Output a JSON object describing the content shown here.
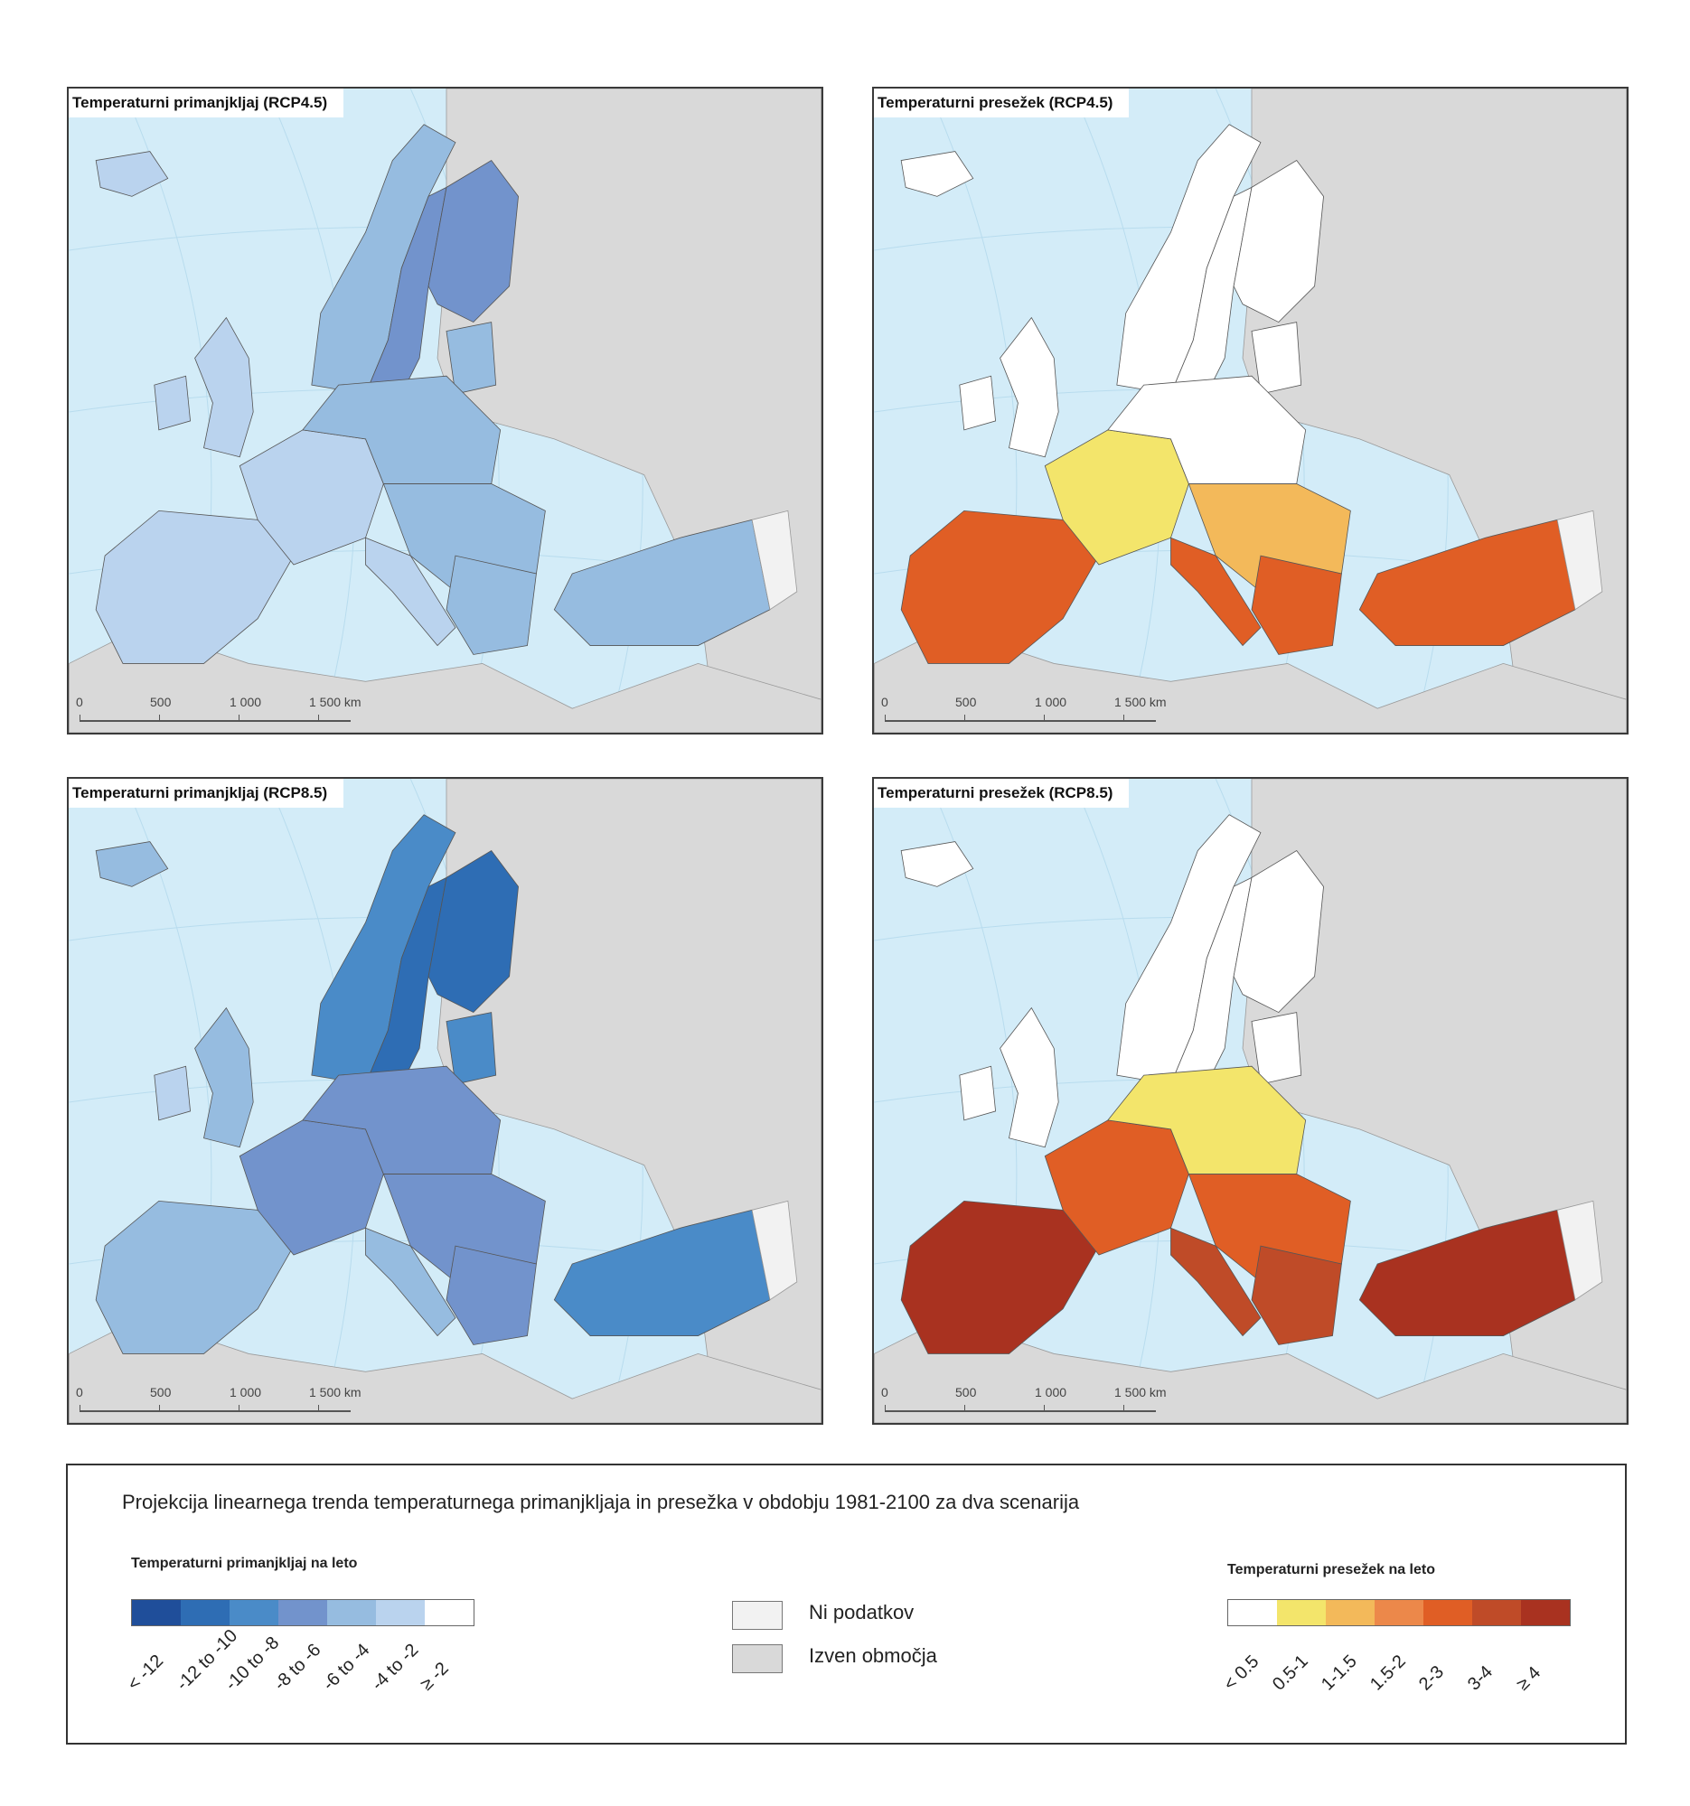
{
  "maps": [
    {
      "title": "Temperaturni primanjkljaj (RCP4.5)",
      "kind": "deficit",
      "scenario": "RCP4.5"
    },
    {
      "title": "Temperaturni presežek (RCP4.5)",
      "kind": "excess",
      "scenario": "RCP4.5"
    },
    {
      "title": "Temperaturni primanjkljaj (RCP8.5)",
      "kind": "deficit",
      "scenario": "RCP8.5"
    },
    {
      "title": "Temperaturni presežek (RCP8.5)",
      "kind": "excess",
      "scenario": "RCP8.5"
    }
  ],
  "scale_bar": {
    "labels": [
      "0",
      "500",
      "1 000",
      "1 500 km"
    ]
  },
  "colors": {
    "sea": "#d3ecf8",
    "outside_area": "#d9d9d9",
    "no_data": "#f2f2f2",
    "border": "#3a3a3a"
  },
  "legend": {
    "title": "Projekcija linearnega trenda temperaturnega primanjkljaja in presežka v obdobju 1981-2100 za dva scenarija",
    "deficit": {
      "title": "Temperaturni primanjkljaj na leto",
      "classes": [
        {
          "label": "< -12",
          "color": "#1f4e9a"
        },
        {
          "label": "-12 to -10",
          "color": "#2e6db4"
        },
        {
          "label": "-10 to -8",
          "color": "#4a8bc8"
        },
        {
          "label": "-8 to -6",
          "color": "#7293cc"
        },
        {
          "label": "-6 to -4",
          "color": "#96bce0"
        },
        {
          "label": "-4 to -2",
          "color": "#bad3ee"
        },
        {
          "label": "≥ -2",
          "color": "#ffffff"
        }
      ]
    },
    "excess": {
      "title": "Temperaturni presežek na leto",
      "classes": [
        {
          "label": "< 0.5",
          "color": "#ffffff"
        },
        {
          "label": "0.5-1",
          "color": "#f3e56b"
        },
        {
          "label": "1-1.5",
          "color": "#f3b95a"
        },
        {
          "label": "1.5-2",
          "color": "#ec884a"
        },
        {
          "label": "2-3",
          "color": "#e05e25"
        },
        {
          "label": "3-4",
          "color": "#bf4b28"
        },
        {
          "label": "≥ 4",
          "color": "#a93220"
        }
      ]
    },
    "no_data": {
      "label": "Ni podatkov",
      "color": "#f2f2f2"
    },
    "outside": {
      "label": "Izven območja",
      "color": "#d9d9d9"
    }
  }
}
